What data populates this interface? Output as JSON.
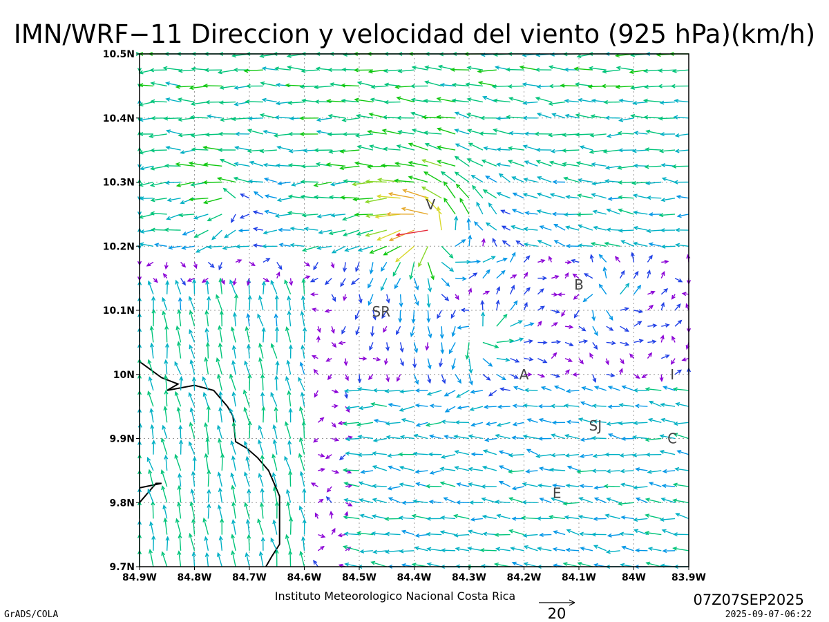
{
  "title": "IMN/WRF−11 Direccion y velocidad del viento (925 hPa)(km/h)",
  "footer": {
    "institute": "Instituto Meteorologico Nacional Costa Rica",
    "software": "GrADS/COLA",
    "valid_time": "07Z07SEP2025",
    "run_time": "2025-09-07-06:22"
  },
  "reference_vector": {
    "label": "20",
    "value": 20
  },
  "map": {
    "lon_range": [
      -84.9,
      -83.9
    ],
    "lat_range": [
      9.7,
      10.5
    ],
    "grid": true,
    "x_ticks": [
      {
        "value": -84.9,
        "label": "84.9W"
      },
      {
        "value": -84.8,
        "label": "84.8W"
      },
      {
        "value": -84.7,
        "label": "84.7W"
      },
      {
        "value": -84.6,
        "label": "84.6W"
      },
      {
        "value": -84.5,
        "label": "84.5W"
      },
      {
        "value": -84.4,
        "label": "84.4W"
      },
      {
        "value": -84.3,
        "label": "84.3W"
      },
      {
        "value": -84.2,
        "label": "84.2W"
      },
      {
        "value": -84.1,
        "label": "84.1W"
      },
      {
        "value": -84.0,
        "label": "84W"
      },
      {
        "value": -83.9,
        "label": "83.9W"
      }
    ],
    "y_ticks": [
      {
        "value": 9.7,
        "label": "9.7N"
      },
      {
        "value": 9.8,
        "label": "9.8N"
      },
      {
        "value": 9.9,
        "label": "9.9N"
      },
      {
        "value": 10.0,
        "label": "10N"
      },
      {
        "value": 10.1,
        "label": "10.1N"
      },
      {
        "value": 10.2,
        "label": "10.2N"
      },
      {
        "value": 10.3,
        "label": "10.3N"
      },
      {
        "value": 10.4,
        "label": "10.4N"
      },
      {
        "value": 10.5,
        "label": "10.5N"
      }
    ],
    "places": [
      {
        "label": "V",
        "lon": -84.37,
        "lat": 10.265
      },
      {
        "label": "B",
        "lon": -84.1,
        "lat": 10.14
      },
      {
        "label": "SR",
        "lon": -84.46,
        "lat": 10.098
      },
      {
        "label": "A",
        "lon": -84.2,
        "lat": 10.0
      },
      {
        "label": "I",
        "lon": -83.93,
        "lat": 10.0
      },
      {
        "label": "SJ",
        "lon": -84.07,
        "lat": 9.92
      },
      {
        "label": "C",
        "lon": -83.93,
        "lat": 9.9
      },
      {
        "label": "E",
        "lon": -84.14,
        "lat": 9.815
      }
    ],
    "coastline": [
      [
        [
          -84.9,
          10.02
        ],
        [
          -84.86,
          9.995
        ],
        [
          -84.83,
          9.985
        ],
        [
          -84.85,
          9.975
        ],
        [
          -84.8,
          9.983
        ],
        [
          -84.765,
          9.975
        ],
        [
          -84.74,
          9.95
        ],
        [
          -84.73,
          9.935
        ],
        [
          -84.725,
          9.895
        ],
        [
          -84.715,
          9.89
        ],
        [
          -84.705,
          9.885
        ],
        [
          -84.685,
          9.87
        ],
        [
          -84.665,
          9.85
        ],
        [
          -84.655,
          9.83
        ],
        [
          -84.645,
          9.81
        ],
        [
          -84.645,
          9.795
        ],
        [
          -84.645,
          9.755
        ],
        [
          -84.645,
          9.735
        ],
        [
          -84.66,
          9.715
        ],
        [
          -84.67,
          9.7
        ]
      ],
      [
        [
          -84.9,
          9.8
        ],
        [
          -84.87,
          9.83
        ],
        [
          -84.86,
          9.83
        ],
        [
          -84.9,
          9.823
        ]
      ]
    ],
    "colors": [
      "#8a00d6",
      "#1f3fe6",
      "#0096e6",
      "#00b0c4",
      "#00c47a",
      "#10c810",
      "#8ad82a",
      "#d8d82a",
      "#e6a82a",
      "#e6602a",
      "#e62a3a",
      "#e01a8a"
    ]
  },
  "chart_data": {
    "type": "vector",
    "units": "km/h",
    "level": "925 hPa",
    "grid_spacing_deg": 0.025,
    "vortices": [
      {
        "lon": -84.36,
        "lat": 10.22,
        "strength": 24,
        "radius": 0.09
      },
      {
        "lon": -84.28,
        "lat": 10.06,
        "strength": 16,
        "radius": 0.06
      },
      {
        "lon": -84.05,
        "lat": 10.12,
        "strength": 10,
        "radius": 0.06
      },
      {
        "lon": -84.73,
        "lat": 10.27,
        "strength": 12,
        "radius": 0.05
      }
    ]
  }
}
